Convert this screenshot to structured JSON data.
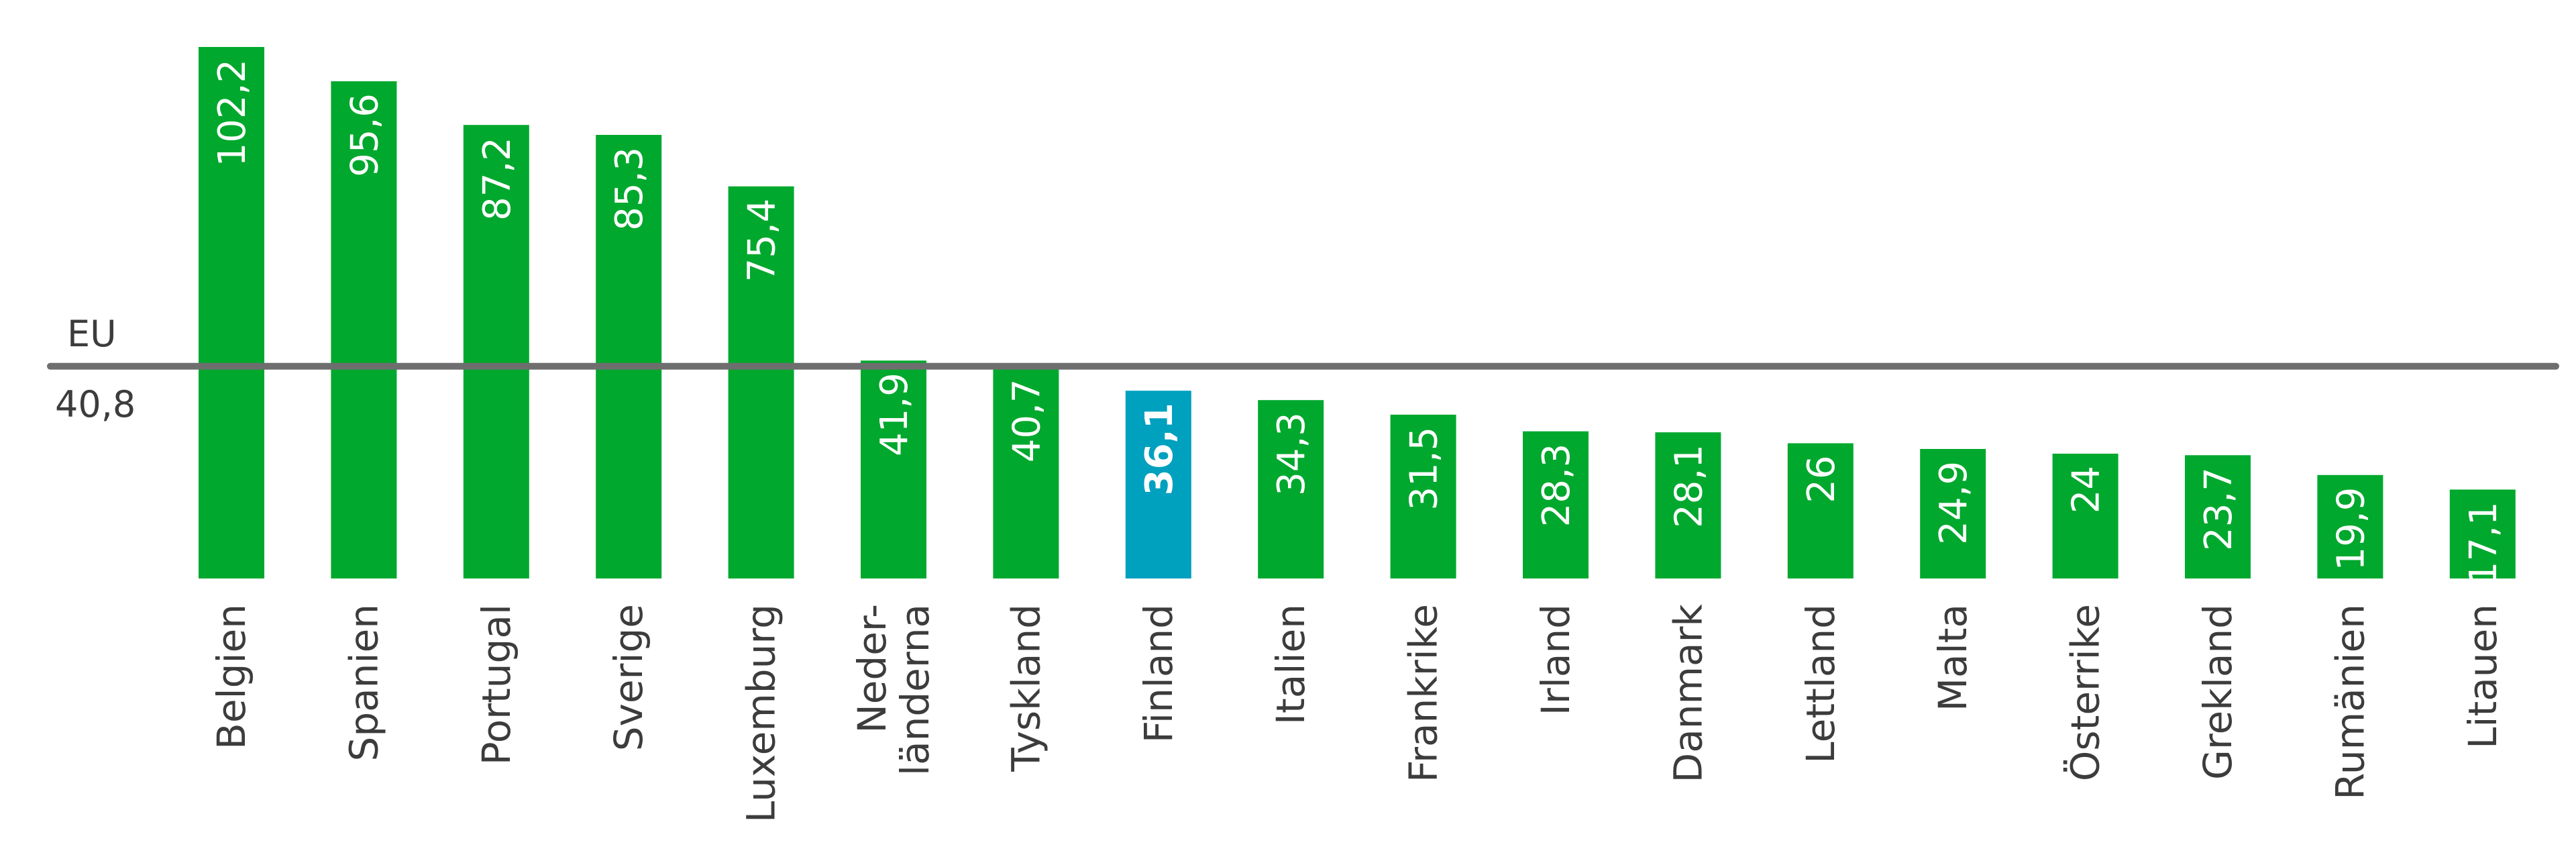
{
  "chart_data": {
    "type": "bar",
    "categories": [
      [
        "Belgien"
      ],
      [
        "Spanien"
      ],
      [
        "Portugal"
      ],
      [
        "Sverige"
      ],
      [
        "Luxemburg"
      ],
      [
        "Neder-",
        "länderna"
      ],
      [
        "Tyskland"
      ],
      [
        "Finland"
      ],
      [
        "Italien"
      ],
      [
        "Frankrike"
      ],
      [
        "Irland"
      ],
      [
        "Danmark"
      ],
      [
        "Lettland"
      ],
      [
        "Malta"
      ],
      [
        "Österrike"
      ],
      [
        "Grekland"
      ],
      [
        "Rumänien"
      ],
      [
        "Litauen"
      ]
    ],
    "values": [
      102.2,
      95.6,
      87.2,
      85.3,
      75.4,
      41.9,
      40.7,
      36.1,
      34.3,
      31.5,
      28.3,
      28.1,
      26,
      24.9,
      24,
      23.7,
      19.9,
      17.1
    ],
    "value_labels": [
      "102,2",
      "95,6",
      "87,2",
      "85,3",
      "75,4",
      "41,9",
      "40,7",
      "36,1",
      "34,3",
      "31,5",
      "28,3",
      "28,1",
      "26",
      "24,9",
      "24",
      "23,7",
      "19,9",
      "17,1"
    ],
    "highlight_category": "Finland",
    "reference_line": {
      "label": "EU",
      "value": 40.8,
      "value_label": "40,8"
    },
    "ylim": [
      0,
      102.2
    ],
    "colors": {
      "bar": "#00a82d",
      "highlight": "#00a0bf",
      "reference_line": "#6e6e6e",
      "text": "#3c3c3c",
      "value_text": "#ffffff"
    },
    "grid": false
  }
}
